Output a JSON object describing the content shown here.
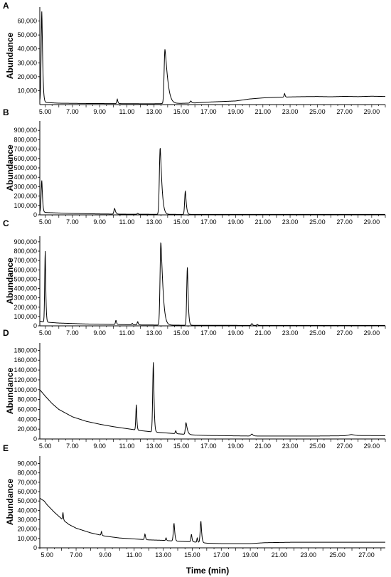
{
  "figure": {
    "x_axis_title": "Time (min)"
  },
  "chart_data": [
    {
      "type": "line",
      "panel_label": "A",
      "ylabel": "Abundance",
      "xlim": [
        4.6,
        30.0
      ],
      "ylim": [
        0,
        70000
      ],
      "xticks": [
        "5.00",
        "7.00",
        "9.00",
        "11.00",
        "13.00",
        "15.00",
        "17.00",
        "19.00",
        "21.00",
        "23.00",
        "25.00",
        "27.00",
        "29.00"
      ],
      "yticks": [
        "10,000",
        "20,000",
        "30,000",
        "40,000",
        "50,000",
        "60,000"
      ],
      "baseline": [
        [
          4.6,
          2500
        ],
        [
          5.0,
          1500
        ],
        [
          6.0,
          1000
        ],
        [
          8.0,
          800
        ],
        [
          10.0,
          700
        ],
        [
          12.0,
          600
        ],
        [
          13.0,
          600
        ],
        [
          15.0,
          900
        ],
        [
          16.0,
          1200
        ],
        [
          17.0,
          1800
        ],
        [
          18.0,
          2200
        ],
        [
          19.0,
          2600
        ],
        [
          20.0,
          4000
        ],
        [
          21.0,
          4800
        ],
        [
          22.0,
          5200
        ],
        [
          23.0,
          5500
        ],
        [
          24.0,
          5700
        ],
        [
          25.0,
          5800
        ],
        [
          26.0,
          5600
        ],
        [
          27.0,
          5900
        ],
        [
          28.0,
          5700
        ],
        [
          29.0,
          6000
        ],
        [
          30.0,
          5800
        ]
      ],
      "peaks": [
        {
          "rt": 4.75,
          "height": 65000,
          "width": 0.05,
          "tail": 0.08
        },
        {
          "rt": 10.3,
          "height": 3200,
          "width": 0.04,
          "tail": 0.05
        },
        {
          "rt": 13.8,
          "height": 39000,
          "width": 0.06,
          "tail": 0.35
        },
        {
          "rt": 15.7,
          "height": 1500,
          "width": 0.05,
          "tail": 0.1
        },
        {
          "rt": 22.6,
          "height": 2500,
          "width": 0.04,
          "tail": 0.04
        }
      ]
    },
    {
      "type": "line",
      "panel_label": "B",
      "ylabel": "Abundance",
      "xlim": [
        4.6,
        30.0
      ],
      "ylim": [
        0,
        1000000
      ],
      "xticks": [
        "5.00",
        "7.00",
        "9.00",
        "11.00",
        "13.00",
        "15.00",
        "17.00",
        "19.00",
        "21.00",
        "23.00",
        "25.00",
        "27.00",
        "29.00"
      ],
      "yticks": [
        "0",
        "100,000",
        "200,000",
        "300,000",
        "400,000",
        "500,000",
        "600,000",
        "700,000",
        "800,000",
        "900,000"
      ],
      "baseline": [
        [
          4.6,
          30000
        ],
        [
          5.0,
          25000
        ],
        [
          7.0,
          15000
        ],
        [
          9.0,
          10000
        ],
        [
          11.0,
          7000
        ],
        [
          13.0,
          6000
        ],
        [
          15.0,
          5000
        ],
        [
          17.0,
          5000
        ],
        [
          21.0,
          5000
        ],
        [
          25.0,
          5000
        ],
        [
          30.0,
          5000
        ]
      ],
      "peaks": [
        {
          "rt": 4.75,
          "height": 340000,
          "width": 0.05,
          "tail": 0.06
        },
        {
          "rt": 10.1,
          "height": 60000,
          "width": 0.05,
          "tail": 0.1
        },
        {
          "rt": 11.8,
          "height": 10000,
          "width": 0.04,
          "tail": 0.05
        },
        {
          "rt": 13.45,
          "height": 710000,
          "width": 0.06,
          "tail": 0.2
        },
        {
          "rt": 15.3,
          "height": 250000,
          "width": 0.05,
          "tail": 0.1
        }
      ]
    },
    {
      "type": "line",
      "panel_label": "C",
      "ylabel": "Abundance",
      "xlim": [
        4.6,
        30.0
      ],
      "ylim": [
        0,
        960000
      ],
      "xticks": [
        "5.00",
        "7.00",
        "9.00",
        "11.00",
        "13.00",
        "15.00",
        "17.00",
        "19.00",
        "21.00",
        "23.00",
        "25.00",
        "27.00",
        "29.00"
      ],
      "yticks": [
        "0",
        "100,000",
        "200,000",
        "300,000",
        "400,000",
        "500,000",
        "600,000",
        "700,000",
        "800,000",
        "900,000"
      ],
      "baseline": [
        [
          4.6,
          50000
        ],
        [
          5.0,
          40000
        ],
        [
          6.0,
          30000
        ],
        [
          8.0,
          20000
        ],
        [
          10.0,
          15000
        ],
        [
          12.0,
          10000
        ],
        [
          14.0,
          8000
        ],
        [
          16.0,
          6000
        ],
        [
          20.0,
          5000
        ],
        [
          25.0,
          5000
        ],
        [
          30.0,
          5000
        ]
      ],
      "peaks": [
        {
          "rt": 5.0,
          "height": 760000,
          "width": 0.04,
          "tail": 0.05
        },
        {
          "rt": 10.2,
          "height": 45000,
          "width": 0.04,
          "tail": 0.06
        },
        {
          "rt": 11.4,
          "height": 15000,
          "width": 0.04,
          "tail": 0.05
        },
        {
          "rt": 11.8,
          "height": 35000,
          "width": 0.04,
          "tail": 0.05
        },
        {
          "rt": 13.5,
          "height": 890000,
          "width": 0.06,
          "tail": 0.25
        },
        {
          "rt": 15.45,
          "height": 620000,
          "width": 0.05,
          "tail": 0.08
        },
        {
          "rt": 20.2,
          "height": 20000,
          "width": 0.05,
          "tail": 0.05
        },
        {
          "rt": 20.6,
          "height": 10000,
          "width": 0.05,
          "tail": 0.05
        }
      ]
    },
    {
      "type": "line",
      "panel_label": "D",
      "ylabel": "Abundance",
      "xlim": [
        4.6,
        30.0
      ],
      "ylim": [
        0,
        195000
      ],
      "xticks": [
        "5.00",
        "7.00",
        "9.00",
        "11.00",
        "13.00",
        "15.00",
        "17.00",
        "19.00",
        "21.00",
        "23.00",
        "25.00",
        "27.00",
        "29.00"
      ],
      "yticks": [
        "0",
        "20,000",
        "40,000",
        "60,000",
        "80,000",
        "100,000",
        "120,000",
        "140,000",
        "160,000",
        "180,000"
      ],
      "baseline": [
        [
          4.6,
          100000
        ],
        [
          5.0,
          87000
        ],
        [
          5.5,
          72000
        ],
        [
          6.0,
          60000
        ],
        [
          7.0,
          45000
        ],
        [
          8.0,
          36000
        ],
        [
          9.0,
          30000
        ],
        [
          10.0,
          25000
        ],
        [
          11.0,
          21000
        ],
        [
          12.0,
          17000
        ],
        [
          13.0,
          14000
        ],
        [
          14.0,
          12000
        ],
        [
          15.0,
          10000
        ],
        [
          16.0,
          8000
        ],
        [
          17.0,
          7000
        ],
        [
          20.0,
          6000
        ],
        [
          25.0,
          6000
        ],
        [
          27.0,
          6500
        ],
        [
          27.5,
          9000
        ],
        [
          28.0,
          7000
        ],
        [
          30.0,
          6500
        ]
      ],
      "peaks": [
        {
          "rt": 11.7,
          "height": 52000,
          "width": 0.04,
          "tail": 0.04
        },
        {
          "rt": 12.95,
          "height": 142000,
          "width": 0.05,
          "tail": 0.06
        },
        {
          "rt": 14.6,
          "height": 6000,
          "width": 0.04,
          "tail": 0.04
        },
        {
          "rt": 15.35,
          "height": 24000,
          "width": 0.05,
          "tail": 0.15
        },
        {
          "rt": 20.2,
          "height": 4000,
          "width": 0.08,
          "tail": 0.1
        }
      ]
    },
    {
      "type": "line",
      "panel_label": "E",
      "ylabel": "Abundance",
      "xlim": [
        4.5,
        28.3
      ],
      "ylim": [
        0,
        98000
      ],
      "xticks": [
        "5.00",
        "7.00",
        "9.00",
        "11.00",
        "13.00",
        "15.00",
        "17.00",
        "19.00",
        "21.00",
        "23.00",
        "25.00",
        "27.00"
      ],
      "yticks": [
        "0",
        "10,000",
        "20,000",
        "30,000",
        "40,000",
        "50,000",
        "60,000",
        "70,000",
        "80,000",
        "90,000"
      ],
      "baseline": [
        [
          4.5,
          53000
        ],
        [
          4.8,
          50000
        ],
        [
          5.0,
          46000
        ],
        [
          5.5,
          38000
        ],
        [
          6.0,
          31000
        ],
        [
          6.5,
          25000
        ],
        [
          7.0,
          21000
        ],
        [
          8.0,
          16000
        ],
        [
          9.0,
          12500
        ],
        [
          10.0,
          10500
        ],
        [
          11.0,
          9500
        ],
        [
          12.0,
          8500
        ],
        [
          13.0,
          8000
        ],
        [
          14.0,
          7000
        ],
        [
          15.0,
          6500
        ],
        [
          16.0,
          5000
        ],
        [
          17.0,
          4500
        ],
        [
          19.0,
          4500
        ],
        [
          20.0,
          5500
        ],
        [
          22.0,
          6000
        ],
        [
          24.0,
          6000
        ],
        [
          26.0,
          6000
        ],
        [
          28.3,
          6000
        ]
      ],
      "peaks": [
        {
          "rt": 6.1,
          "height": 8000,
          "width": 0.03,
          "tail": 0.03
        },
        {
          "rt": 8.75,
          "height": 4000,
          "width": 0.03,
          "tail": 0.03
        },
        {
          "rt": 11.75,
          "height": 6000,
          "width": 0.04,
          "tail": 0.04
        },
        {
          "rt": 13.2,
          "height": 3000,
          "width": 0.03,
          "tail": 0.03
        },
        {
          "rt": 13.75,
          "height": 19000,
          "width": 0.05,
          "tail": 0.06
        },
        {
          "rt": 14.95,
          "height": 8000,
          "width": 0.04,
          "tail": 0.04
        },
        {
          "rt": 15.35,
          "height": 5000,
          "width": 0.03,
          "tail": 0.03
        },
        {
          "rt": 15.6,
          "height": 23000,
          "width": 0.05,
          "tail": 0.06
        }
      ]
    }
  ]
}
